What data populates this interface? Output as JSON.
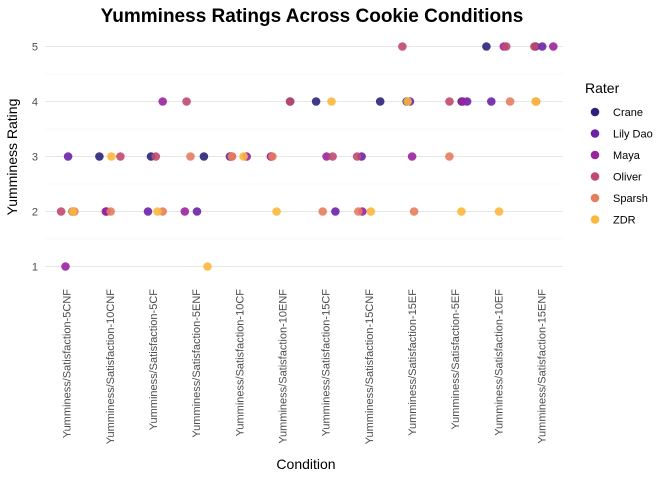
{
  "colors": {
    "Crane": "#2a237a",
    "Lily Dao": "#6a21a8",
    "Maya": "#9b249e",
    "Oliver": "#c0496f",
    "Sparsh": "#e57d5e",
    "ZDR": "#fbb83c",
    "grid_major": "#e6e6e6",
    "grid_minor": "#f3f3f3"
  },
  "chart_data": {
    "type": "scatter",
    "title": "Yumminess Ratings Across Cookie Conditions",
    "xlabel": "Condition",
    "ylabel": "Yumminess Rating",
    "ylim": [
      0.7,
      5.3
    ],
    "yticks": [
      1,
      2,
      3,
      4,
      5
    ],
    "legend_title": "Rater",
    "legend_position": "right",
    "grid": true,
    "categories": [
      "Yumminess/Satisfaction-5CNF",
      "Yumminess/Satisfaction-10CNF",
      "Yumminess/Satisfaction-5CF",
      "Yumminess/Satisfaction-5ENF",
      "Yumminess/Satisfaction-10CF",
      "Yumminess/Satisfaction-10ENF",
      "Yumminess/Satisfaction-15CF",
      "Yumminess/Satisfaction-15CNF",
      "Yumminess/Satisfaction-15EF",
      "Yumminess/Satisfaction-5EF",
      "Yumminess/Satisfaction-10EF",
      "Yumminess/Satisfaction-15ENF"
    ],
    "series": [
      {
        "name": "Crane",
        "values": [
          2,
          3,
          3,
          3,
          3,
          4,
          4,
          4,
          4,
          4,
          5,
          5
        ]
      },
      {
        "name": "Lily Dao",
        "values": [
          3,
          2,
          2,
          2,
          3,
          3,
          2,
          3,
          4,
          4,
          4,
          5
        ]
      },
      {
        "name": "Maya",
        "values": [
          1,
          2,
          4,
          2,
          3,
          3,
          3,
          2,
          3,
          4,
          5,
          5
        ]
      },
      {
        "name": "Oliver",
        "values": [
          2,
          3,
          3,
          4,
          3,
          4,
          3,
          3,
          5,
          4,
          5,
          5
        ]
      },
      {
        "name": "Sparsh",
        "values": [
          2,
          2,
          2,
          3,
          3,
          3,
          2,
          2,
          2,
          3,
          4,
          4
        ]
      },
      {
        "name": "ZDR",
        "values": [
          2,
          3,
          2,
          1,
          3,
          2,
          4,
          2,
          4,
          2,
          2,
          4
        ]
      }
    ]
  }
}
